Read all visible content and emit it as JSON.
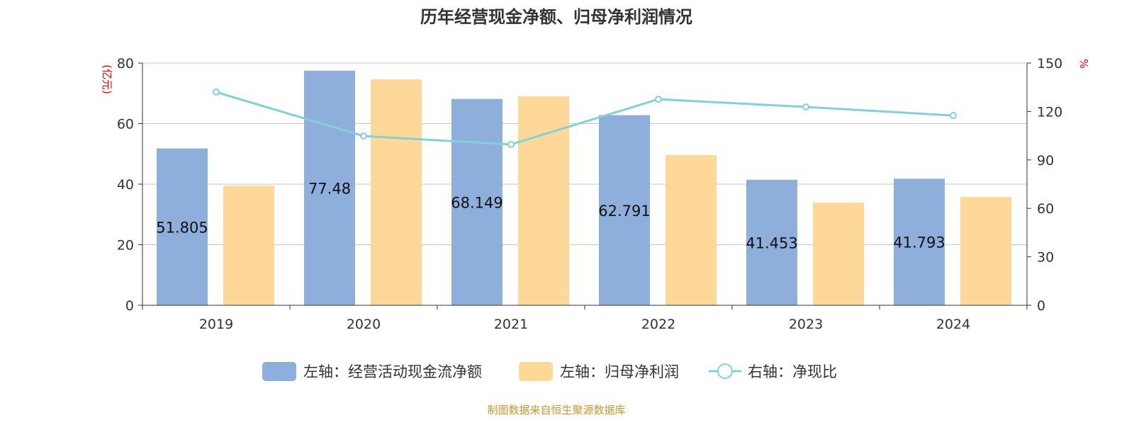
{
  "chart_data": {
    "type": "bar",
    "title": "历年经营现金净额、归母净利润情况",
    "left_axis_label": "(亿元)",
    "right_axis_label": "%",
    "categories": [
      "2019",
      "2020",
      "2021",
      "2022",
      "2023",
      "2024"
    ],
    "left_ylim": [
      0,
      80
    ],
    "left_ticks": [
      0,
      20,
      40,
      60,
      80
    ],
    "right_ylim": [
      0,
      150
    ],
    "right_ticks": [
      0,
      30,
      60,
      90,
      120,
      150
    ],
    "grid": true,
    "legend_placement": "bottom",
    "series": [
      {
        "name": "左轴：经营活动现金流净额",
        "type": "bar",
        "axis": "left",
        "color": "#8eaedb",
        "values": [
          51.805,
          77.48,
          68.149,
          62.791,
          41.453,
          41.793
        ],
        "labels": [
          "51.805",
          "77.48",
          "68.149",
          "62.791",
          "41.453",
          "41.793"
        ]
      },
      {
        "name": "左轴：归母净利润",
        "type": "bar",
        "axis": "left",
        "color": "#fed899",
        "values": [
          39.5,
          74.6,
          69.0,
          49.6,
          33.9,
          35.8
        ]
      },
      {
        "name": "右轴：净现比",
        "type": "line",
        "axis": "right",
        "color": "#7fd3d8",
        "values": [
          132.0,
          104.8,
          99.6,
          127.6,
          122.8,
          117.5
        ]
      }
    ]
  },
  "footer": "制图数据来自恒生聚源数据库"
}
